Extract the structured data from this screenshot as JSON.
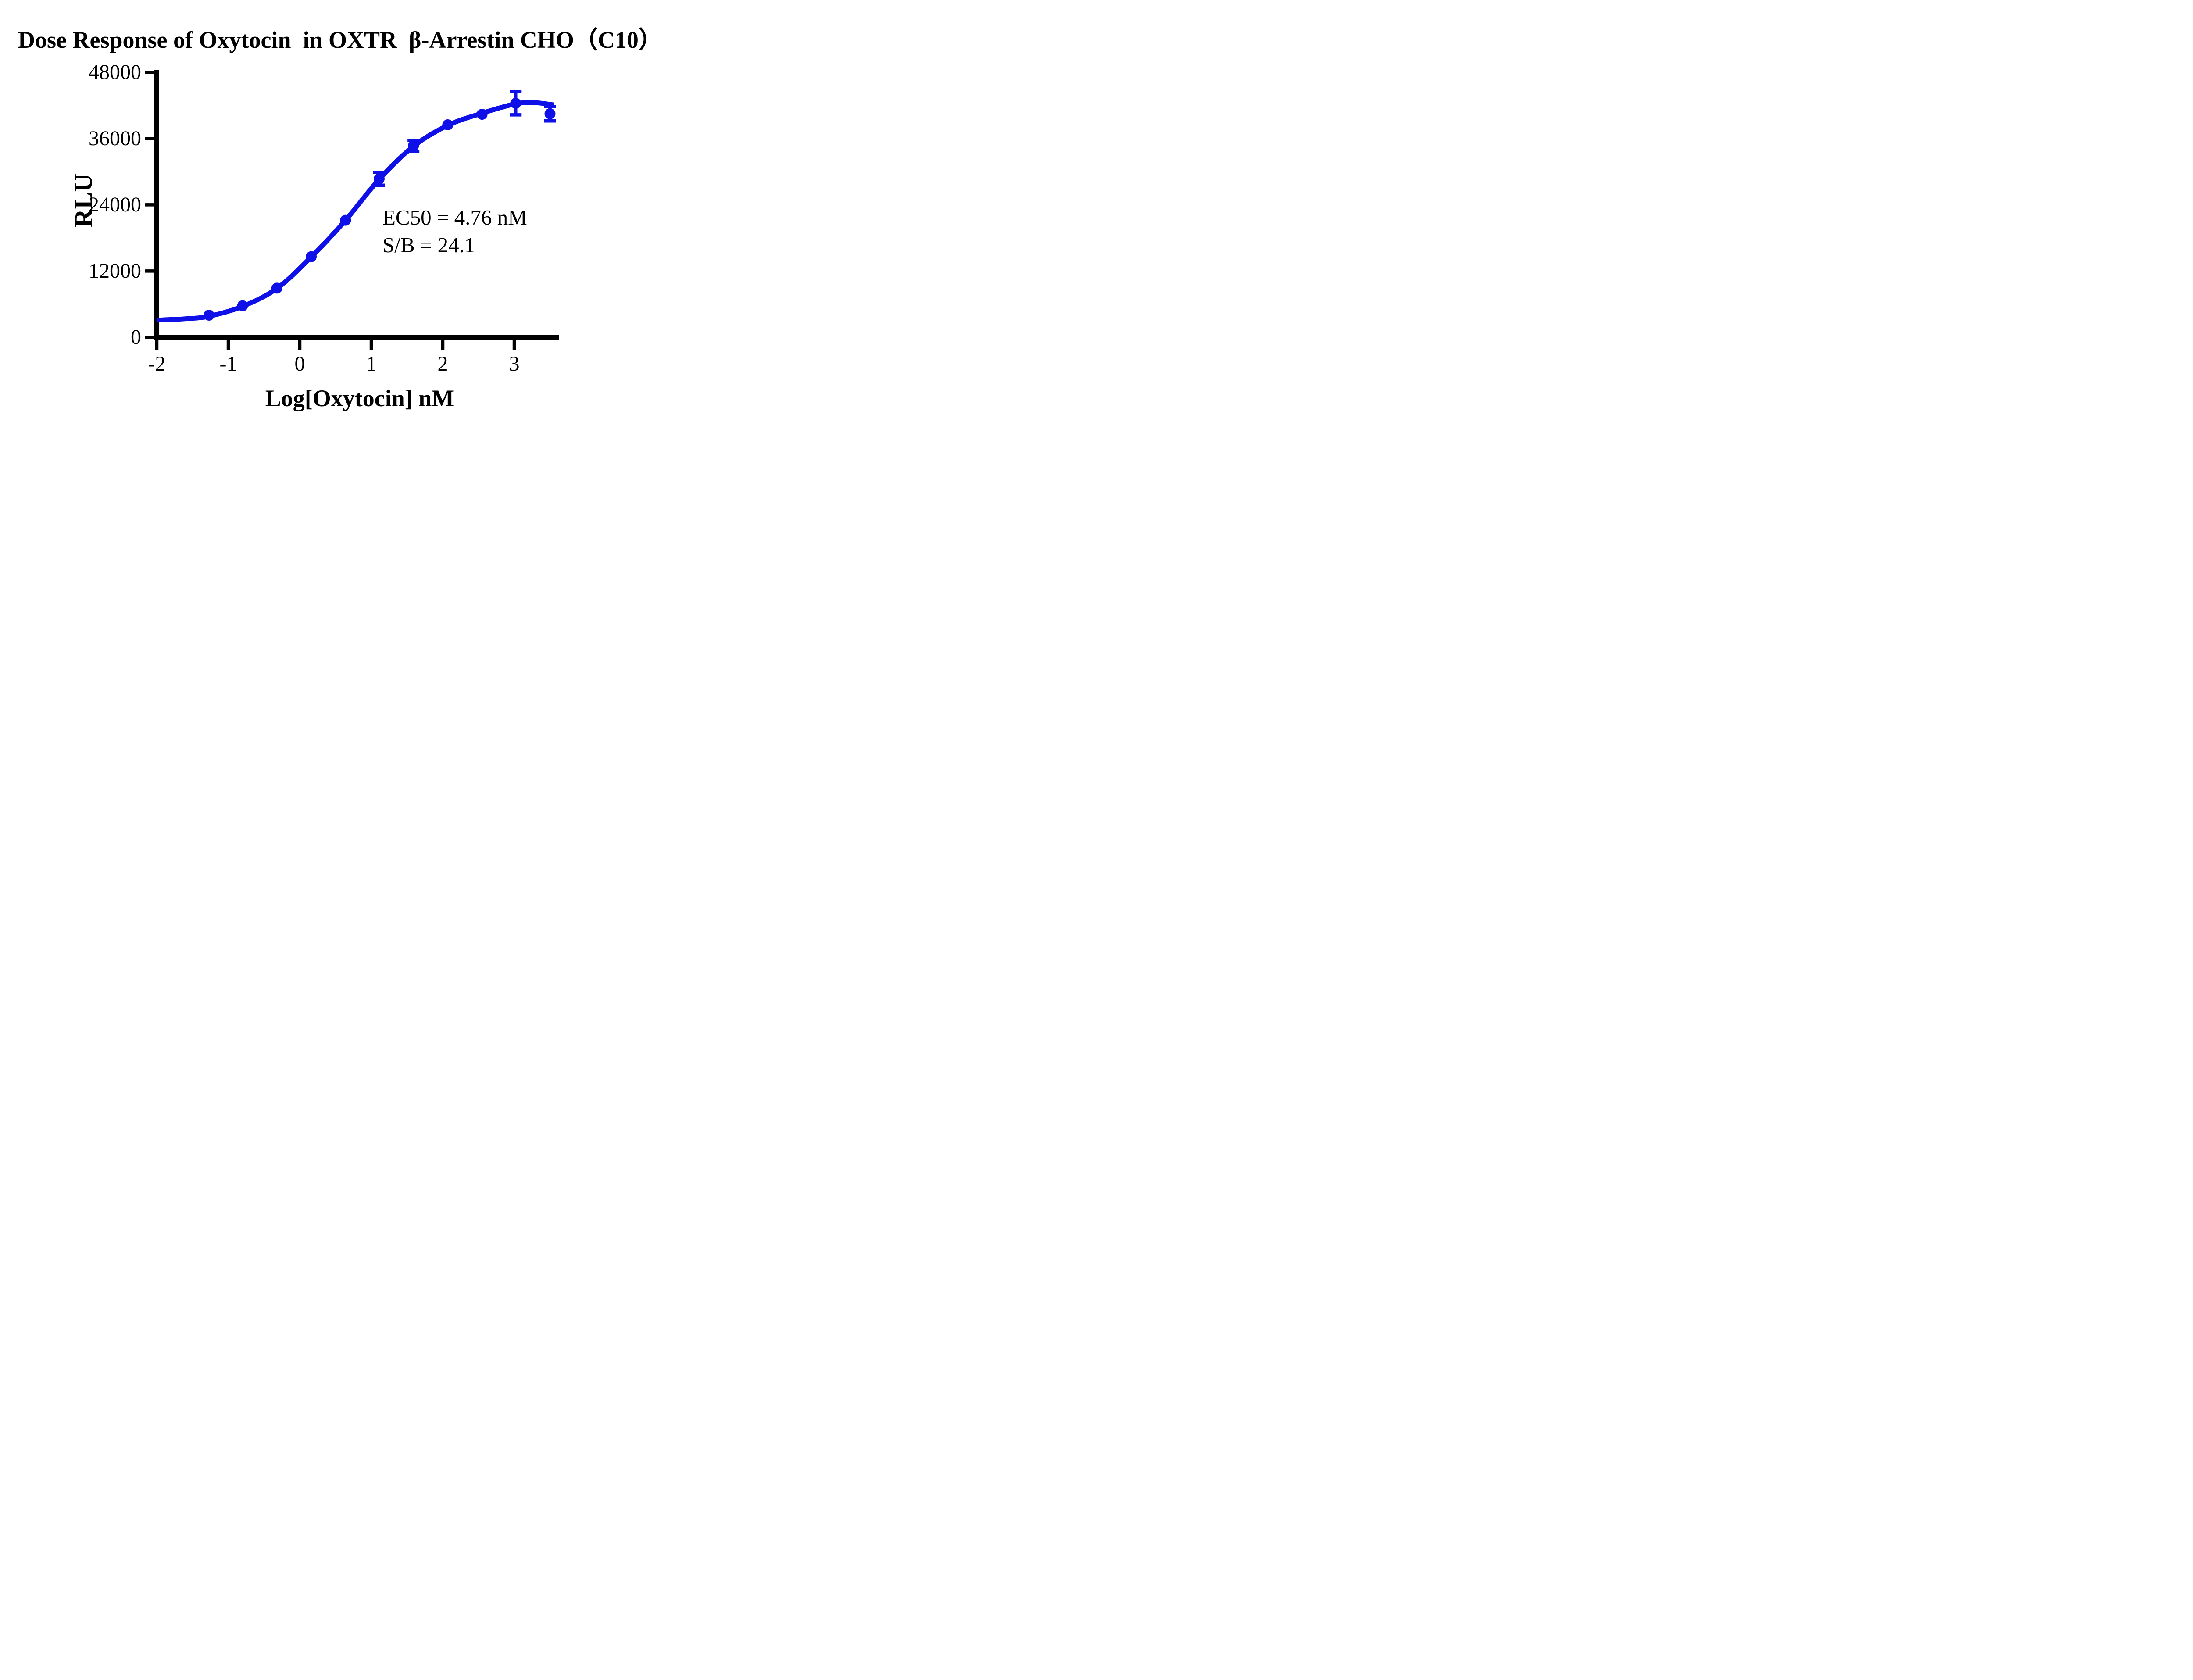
{
  "title": "Dose Response of Oxytocin  in OXTR  β-Arrestin CHO（C10）",
  "annotation": {
    "ec50_line": "EC50 = 4.76 nM",
    "sb_line": "S/B = 24.1"
  },
  "chart_data": {
    "type": "scatter",
    "title": "Dose Response of Oxytocin  in OXTR  β-Arrestin CHO（C10）",
    "xlabel": "Log[Oxytocin] nM",
    "ylabel": "RLU",
    "xlim": [
      -2,
      3.62
    ],
    "ylim": [
      0,
      48000
    ],
    "x_ticks": [
      -2,
      -1,
      0,
      1,
      2,
      3
    ],
    "y_ticks": [
      0,
      12000,
      24000,
      36000,
      48000
    ],
    "grid": false,
    "legend_position": "none",
    "ec50_nM": 4.76,
    "signal_to_background": 24.1,
    "colors": {
      "series_blue": "#0f0fe8",
      "axis_black": "#000000"
    },
    "series": [
      {
        "name": "Oxytocin",
        "color": "#0f0fe8",
        "points": [
          {
            "x": -1.27,
            "y": 4000,
            "err": null
          },
          {
            "x": -0.8,
            "y": 5700,
            "err": null
          },
          {
            "x": -0.32,
            "y": 8900,
            "err": null
          },
          {
            "x": 0.16,
            "y": 14600,
            "err": null
          },
          {
            "x": 0.64,
            "y": 21200,
            "err": null
          },
          {
            "x": 1.11,
            "y": 28700,
            "err": 1150
          },
          {
            "x": 1.59,
            "y": 34700,
            "err": 1000
          },
          {
            "x": 2.07,
            "y": 38500,
            "err": null
          },
          {
            "x": 2.55,
            "y": 40400,
            "err": null
          },
          {
            "x": 3.02,
            "y": 42400,
            "err": 2100
          },
          {
            "x": 3.5,
            "y": 40500,
            "err": 1300
          }
        ]
      }
    ],
    "fit_curve": [
      {
        "x": -2.0,
        "y": 3100
      },
      {
        "x": -1.6,
        "y": 3350
      },
      {
        "x": -1.27,
        "y": 3800
      },
      {
        "x": -0.8,
        "y": 5600
      },
      {
        "x": -0.32,
        "y": 8850
      },
      {
        "x": 0.16,
        "y": 14550
      },
      {
        "x": 0.64,
        "y": 21200
      },
      {
        "x": 1.11,
        "y": 28600
      },
      {
        "x": 1.59,
        "y": 34600
      },
      {
        "x": 2.07,
        "y": 38400
      },
      {
        "x": 2.55,
        "y": 40600
      },
      {
        "x": 3.02,
        "y": 42300
      },
      {
        "x": 3.3,
        "y": 42500
      },
      {
        "x": 3.55,
        "y": 42100
      }
    ]
  }
}
